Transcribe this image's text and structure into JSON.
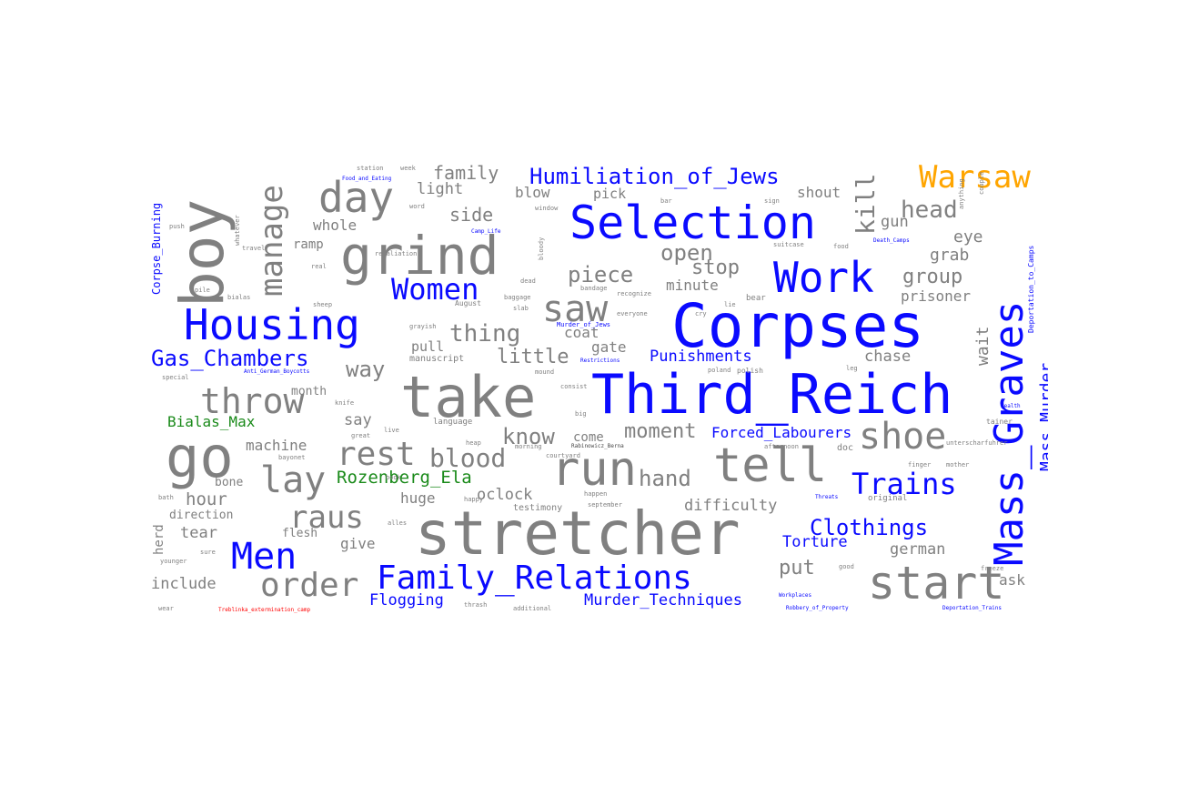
{
  "colors": {
    "person": "#1a8a1a",
    "place": "#ffa500",
    "camp": "#ff0000",
    "topic": "#0a0aff",
    "word": "#808080"
  },
  "words": {
    "corpses": "Corpses",
    "third_reich": "Third_Reich",
    "stretcher": "stretcher",
    "take": "take",
    "selection": "Selection",
    "housing": "Housing",
    "grind": "grind",
    "boy": "boy",
    "mass_graves": "Mass_Graves",
    "work": "Work",
    "tell": "tell",
    "run": "run",
    "start": "start",
    "family_relations": "Family_Relations",
    "go": "go",
    "throw": "throw",
    "men": "Men",
    "trains": "Trains",
    "humiliation_of_jews": "Humiliation_of_Jews",
    "warsaw": "Warsaw",
    "women": "Women",
    "day": "day",
    "manage": "manage",
    "saw": "saw",
    "shoe": "shoe",
    "lay": "lay",
    "rest": "rest",
    "order": "order",
    "raus": "raus",
    "gas_chambers": "Gas_Chambers",
    "clothings": "Clothings",
    "blood": "blood",
    "hand": "hand",
    "piece": "piece",
    "thing": "thing",
    "know": "know",
    "open": "open",
    "head": "head",
    "kill": "kill",
    "way": "way",
    "moment": "moment",
    "little": "little",
    "stop": "stop",
    "group": "group",
    "mass_murder": "Mass_Murder",
    "rozenberg_ela": "Rozenberg_Ela",
    "bialas_max": "Bialas_Max",
    "punishments": "Punishments",
    "forced_labourers": "Forced_Labourers",
    "torture": "Torture",
    "murder_techniques": "Murder_Techniques",
    "flogging": "Flogging",
    "family": "family",
    "side": "side",
    "light": "light",
    "blow": "blow",
    "pick": "pick",
    "shout": "shout",
    "gun": "gun",
    "grab": "grab",
    "eye": "eye",
    "prisoner": "prisoner",
    "minute": "minute",
    "coat": "coat",
    "gate": "gate",
    "pull": "pull",
    "chase": "chase",
    "wait": "wait",
    "say": "say",
    "machine": "machine",
    "hour": "hour",
    "huge": "huge",
    "oclock": "oclock",
    "difficulty": "difficulty",
    "put": "put",
    "german": "german",
    "ask": "ask",
    "include": "include",
    "tear": "tear",
    "give": "give",
    "month": "month",
    "flesh": "flesh",
    "whole": "whole",
    "ramp": "ramp",
    "come": "come",
    "bone": "bone",
    "direction": "direction",
    "herd": "herd",
    "corpse_burning": "Corpse_Burning",
    "deportation_to_camps": "Deportation_to_Camps",
    "treblinka": "Treblinka_extermination_camp",
    "murder_of_jews": "Murder_of_Jews",
    "camp_life": "Camp_Life",
    "anti_german_boycotts": "Anti_German_Boycotts",
    "food_and_eating": "Food_and_Eating",
    "restrictions": "Restrictions",
    "death_camps": "Death_Camps",
    "threats": "Threats",
    "workplaces": "Workplaces",
    "robbery_of_property": "Robbery_of_Property",
    "deportation_trains": "Deportation_Trains",
    "health": "Health",
    "rabinowicz": "Rabinowicz_Berna",
    "manuscript": "manuscript",
    "testimony": "testimony",
    "language": "language",
    "august": "August",
    "bandage": "bandage",
    "recognize": "recognize",
    "baggage": "baggage",
    "real": "real",
    "travel": "travel",
    "pile": "pile",
    "bialas": "bialas",
    "sheep": "sheep",
    "tainer": "tainer",
    "doc": "doc",
    "finger": "finger",
    "original": "original",
    "happen": "happen",
    "september": "september",
    "bayonet": "bayonet",
    "afternoon": "afternoon",
    "poland": "poland",
    "leg": "leg",
    "bear": "bear",
    "grayish": "grayish",
    "knife": "knife",
    "morning": "morning",
    "courtyard": "courtyard",
    "consist": "consist",
    "station": "station",
    "week": "week",
    "word": "word",
    "window": "window",
    "bar": "bar",
    "suitcase": "suitcase",
    "food": "food",
    "sign": "sign",
    "sos": "sos",
    "happy": "happy",
    "heap": "heap",
    "polish": "polish",
    "great": "great",
    "special": "special",
    "lie": "lie",
    "mother": "mother",
    "couple": "couple",
    "anything": "anything",
    "bloody": "bloody",
    "mound": "mound",
    "push": "push",
    "kill_small": "kill",
    "cry": "cry",
    "whatever": "whatever",
    "dead": "dead",
    "gravel": "gravel",
    "book": "book",
    "alles": "alles",
    "unterscharfuhrer": "unterscharfuhrer",
    "hair": "hair",
    "burnt": "burnt",
    "thrash": "thrash",
    "additional": "additional",
    "wear": "wear",
    "younger": "younger",
    "accident": "accident",
    "sure": "sure",
    "guard": "guard",
    "pound": "pound",
    "good": "good",
    "freeze": "freeze",
    "tin": "tin",
    "attack": "attack",
    "dam": "dam",
    "list": "list",
    "everyone": "everyone",
    "slab": "slab",
    "sister": "sister",
    "bath": "bath",
    "live": "live",
    "ransom": "ransom",
    "big": "big",
    "retaliation": "retaliation"
  }
}
